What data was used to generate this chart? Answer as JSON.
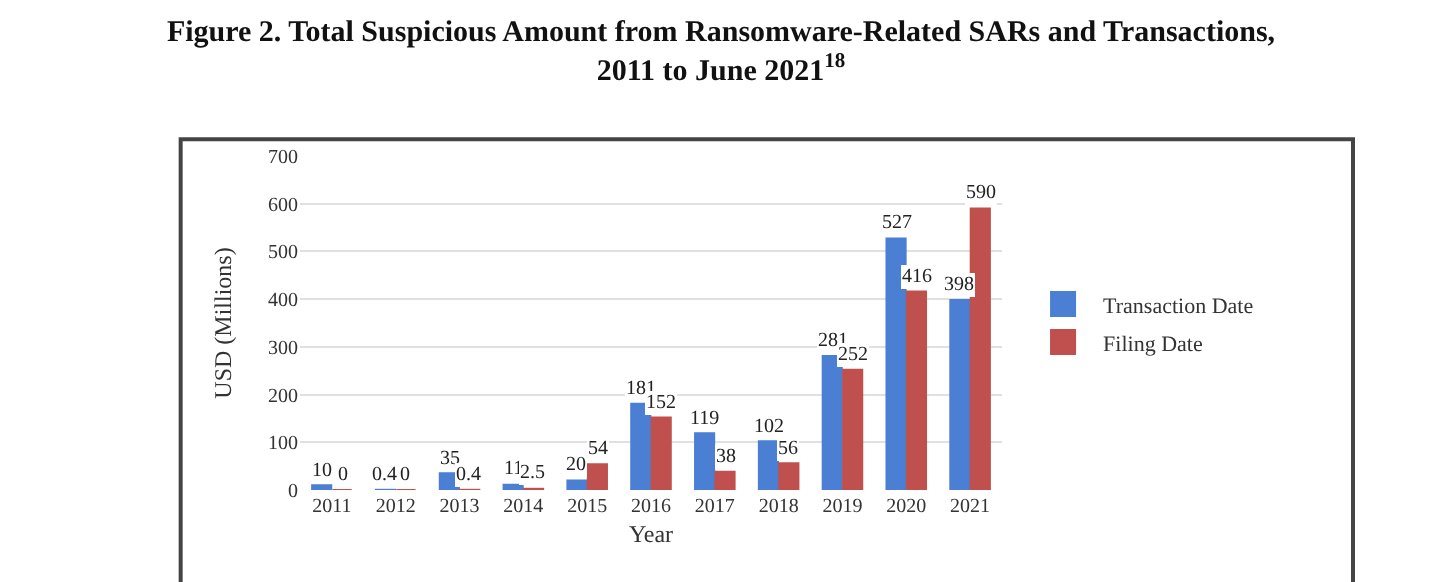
{
  "chart_data": {
    "type": "bar",
    "title": "Figure 2. Total Suspicious Amount from Ransomware-Related SARs and Transactions,\n2011 to June 2021$^{18}$",
    "xlabel": "Year",
    "ylabel": "USD (Millions)",
    "categories": [
      "2011",
      "2012",
      "2013",
      "2014",
      "2015",
      "2016",
      "2017",
      "2018",
      "2019",
      "2020",
      "2021"
    ],
    "series": [
      {
        "name": "Transaction Date",
        "color": "#4a7fd4",
        "values": [
          10,
          0.4,
          35,
          11,
          20,
          181,
          119,
          102,
          281,
          527,
          398
        ]
      },
      {
        "name": "Filing Date",
        "color": "#c0504d",
        "values": [
          0,
          0,
          0.4,
          2.5,
          54,
          152,
          38,
          56,
          252,
          416,
          590
        ]
      }
    ],
    "ylim": [
      0,
      700
    ],
    "yticks": [
      0,
      100,
      200,
      300,
      400,
      500,
      600,
      700
    ],
    "grid": "y",
    "legend": "right",
    "data_labels": true
  }
}
